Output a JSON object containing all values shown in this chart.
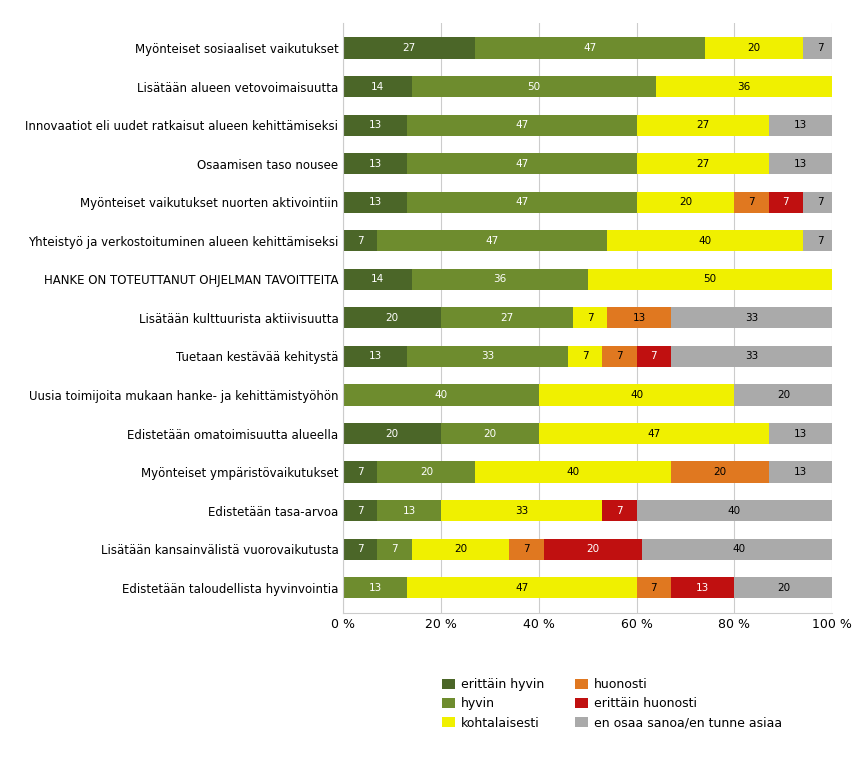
{
  "categories": [
    "Myönteiset sosiaaliset vaikutukset",
    "Lisätään alueen vetovoimaisuutta",
    "Innovaatiot eli uudet ratkaisut alueen kehittämiseksi",
    "Osaamisen taso nousee",
    "Myönteiset vaikutukset nuorten aktivointiin",
    "Yhteistyö ja verkostoituminen alueen kehittämiseksi",
    "HANKE ON TOTEUTTANUT OHJELMAN TAVOITTEITA",
    "Lisätään kulttuurista aktiivisuutta",
    "Tuetaan kestävää kehitystä",
    "Uusia toimijoita mukaan hanke- ja kehittämistyöhön",
    "Edistetään omatoimisuutta alueella",
    "Myönteiset ympäristövaikutukset",
    "Edistetään tasa-arvoa",
    "Lisätään kansainvälistä vuorovaikutusta",
    "Edistetään taloudellista hyvinvointia"
  ],
  "series": {
    "erittäin hyvin": [
      27,
      14,
      13,
      13,
      13,
      7,
      14,
      20,
      13,
      0,
      20,
      7,
      7,
      7,
      0
    ],
    "hyvin": [
      47,
      50,
      47,
      47,
      47,
      47,
      36,
      27,
      33,
      40,
      20,
      20,
      13,
      7,
      13
    ],
    "kohtalaisesti": [
      20,
      36,
      27,
      27,
      20,
      40,
      50,
      7,
      7,
      40,
      47,
      40,
      33,
      20,
      47
    ],
    "huonosti": [
      0,
      0,
      0,
      0,
      7,
      0,
      0,
      13,
      7,
      0,
      0,
      20,
      0,
      7,
      7
    ],
    "erittäin huonosti": [
      0,
      0,
      0,
      0,
      7,
      0,
      0,
      0,
      7,
      0,
      0,
      0,
      7,
      20,
      13
    ],
    "en osaa sanoa/en tunne asiaa": [
      7,
      0,
      13,
      13,
      7,
      7,
      0,
      33,
      33,
      20,
      13,
      13,
      40,
      40,
      20
    ]
  },
  "colors": {
    "erittäin hyvin": "#4b6628",
    "hyvin": "#6e8c2e",
    "kohtalaisesti": "#f0f000",
    "huonosti": "#e07820",
    "erittäin huonosti": "#c01010",
    "en osaa sanoa/en tunne asiaa": "#aaaaaa"
  },
  "legend_order": [
    "erittäin hyvin",
    "hyvin",
    "kohtalaisesti",
    "huonosti",
    "erittäin huonosti",
    "en osaa sanoa/en tunne asiaa"
  ],
  "legend_cols_left": [
    "erittäin hyvin",
    "kohtalaisesti",
    "erittäin huonosti"
  ],
  "legend_cols_right": [
    "hyvin",
    "huonosti",
    "en osaa sanoa/en tunne asiaa"
  ],
  "bar_height": 0.55,
  "figsize": [
    8.58,
    7.66
  ],
  "dpi": 100
}
